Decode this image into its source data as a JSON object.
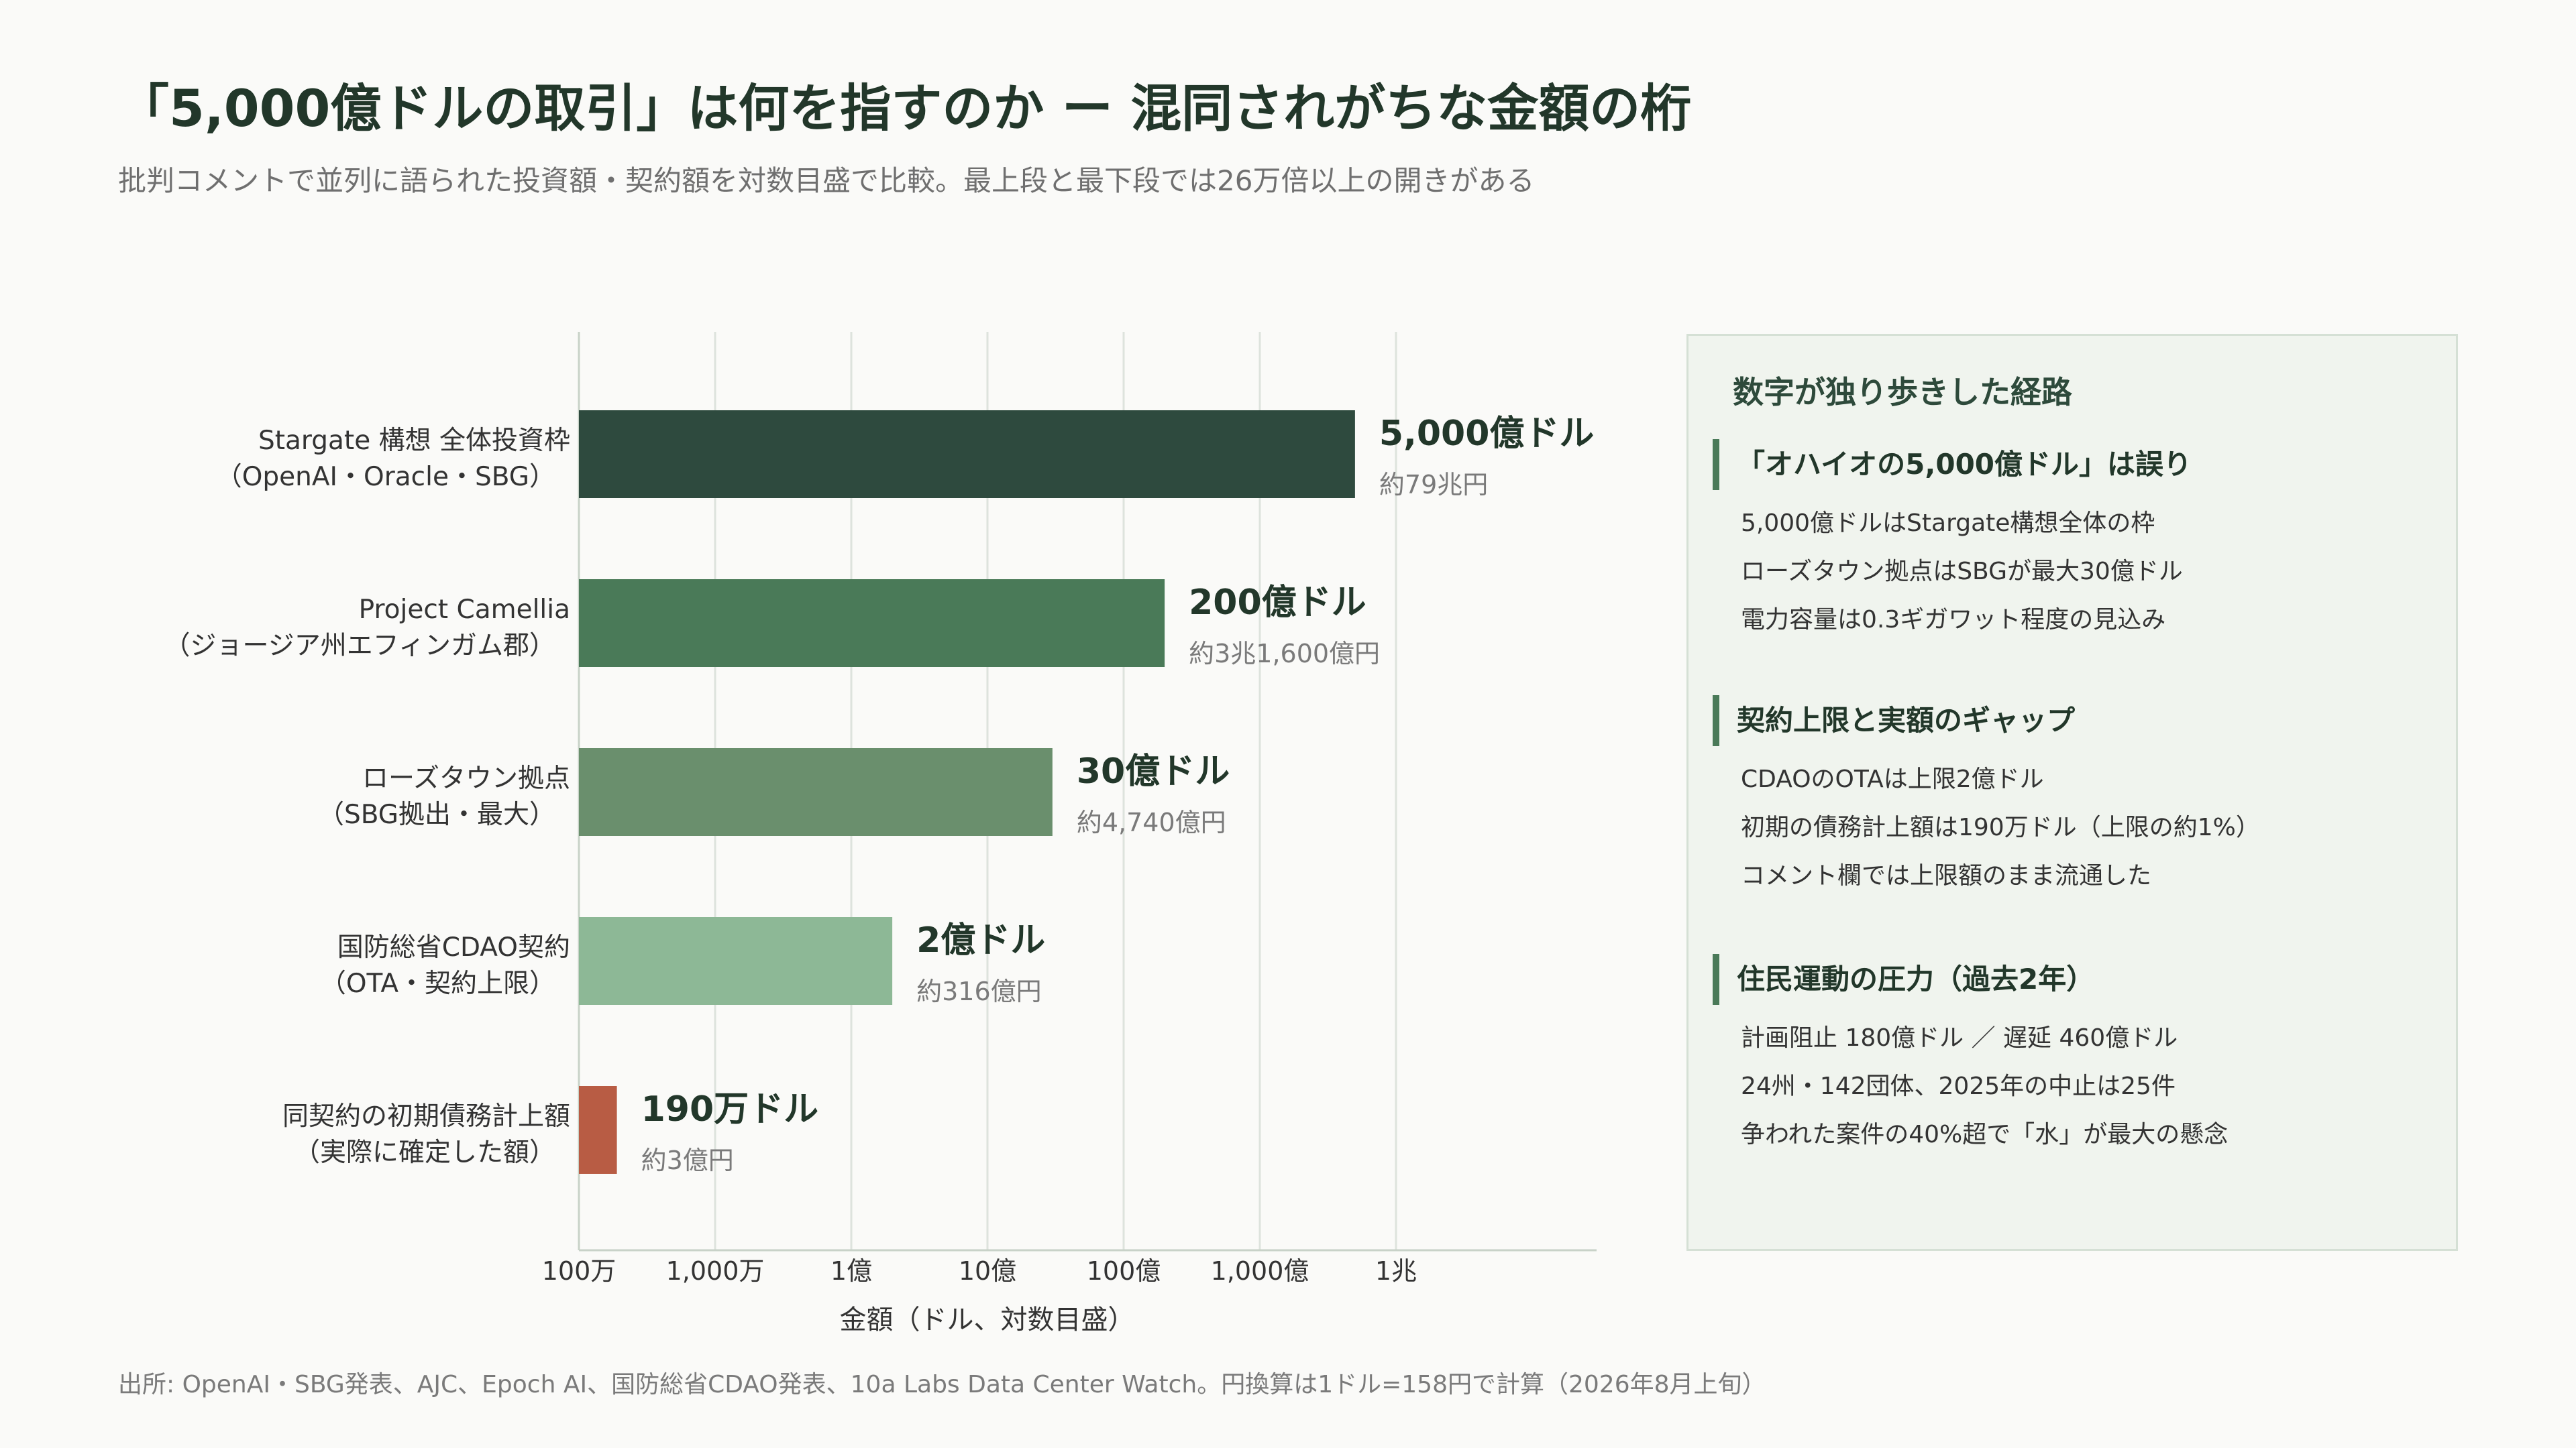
{
  "title": "「5,000億ドルの取引」は何を指すのか ー 混同されがちな金額の桁",
  "subtitle": "批判コメントで並列に語られた投資額・契約額を対数目盛で比較。最上段と最下段では26万倍以上の開きがある",
  "chart_data": {
    "type": "bar",
    "orientation": "horizontal",
    "xscale": "log",
    "xlim": [
      1000000,
      10000000000000
    ],
    "xlabel": "金額（ドル、対数目盛）",
    "x_ticks": [
      {
        "value": 1000000,
        "label": "100万"
      },
      {
        "value": 10000000,
        "label": "1,000万"
      },
      {
        "value": 100000000,
        "label": "1億"
      },
      {
        "value": 1000000000,
        "label": "10億"
      },
      {
        "value": 10000000000,
        "label": "100億"
      },
      {
        "value": 100000000000,
        "label": "1,000億"
      },
      {
        "value": 1000000000000,
        "label": "1兆"
      }
    ],
    "grid": true,
    "bars": [
      {
        "category": [
          "Stargate 構想 全体投資枠",
          "（OpenAI・Oracle・SBG）"
        ],
        "value": 500000000000,
        "value_label": "5,000億ドル",
        "yen_label": "約79兆円",
        "color": "#2e4a3e"
      },
      {
        "category": [
          "Project Camellia",
          "（ジョージア州エフィンガム郡）"
        ],
        "value": 20000000000,
        "value_label": "200億ドル",
        "yen_label": "約3兆1,600億円",
        "color": "#4a7a58"
      },
      {
        "category": [
          "ローズタウン拠点",
          "（SBG拠出・最大）"
        ],
        "value": 3000000000,
        "value_label": "30億ドル",
        "yen_label": "約4,740億円",
        "color": "#6a8f6d"
      },
      {
        "category": [
          "国防総省CDAO契約",
          "（OTA・契約上限）"
        ],
        "value": 200000000,
        "value_label": "2億ドル",
        "yen_label": "約316億円",
        "color": "#8db896"
      },
      {
        "category": [
          "同契約の初期債務計上額",
          "（実際に確定した額）"
        ],
        "value": 1900000,
        "value_label": "190万ドル",
        "yen_label": "約3億円",
        "color": "#b85c44"
      }
    ]
  },
  "panel": {
    "title": "数字が独り歩きした経路",
    "sections": [
      {
        "heading": "「オハイオの5,000億ドル」は誤り",
        "lines": [
          "5,000億ドルはStargate構想全体の枠",
          "ローズタウン拠点はSBGが最大30億ドル",
          "電力容量は0.3ギガワット程度の見込み"
        ]
      },
      {
        "heading": "契約上限と実額のギャップ",
        "lines": [
          "CDAOのOTAは上限2億ドル",
          "初期の債務計上額は190万ドル（上限の約1%）",
          "コメント欄では上限額のまま流通した"
        ]
      },
      {
        "heading": "住民運動の圧力（過去2年）",
        "lines": [
          "計画阻止 180億ドル ／ 遅延 460億ドル",
          "24州・142団体、2025年の中止は25件",
          "争われた案件の40%超で「水」が最大の懸念"
        ]
      }
    ]
  },
  "source": "出所: OpenAI・SBG発表、AJC、Epoch AI、国防総省CDAO発表、10a Labs Data Center Watch。円換算は1ドル=158円で計算（2026年8月上旬）"
}
